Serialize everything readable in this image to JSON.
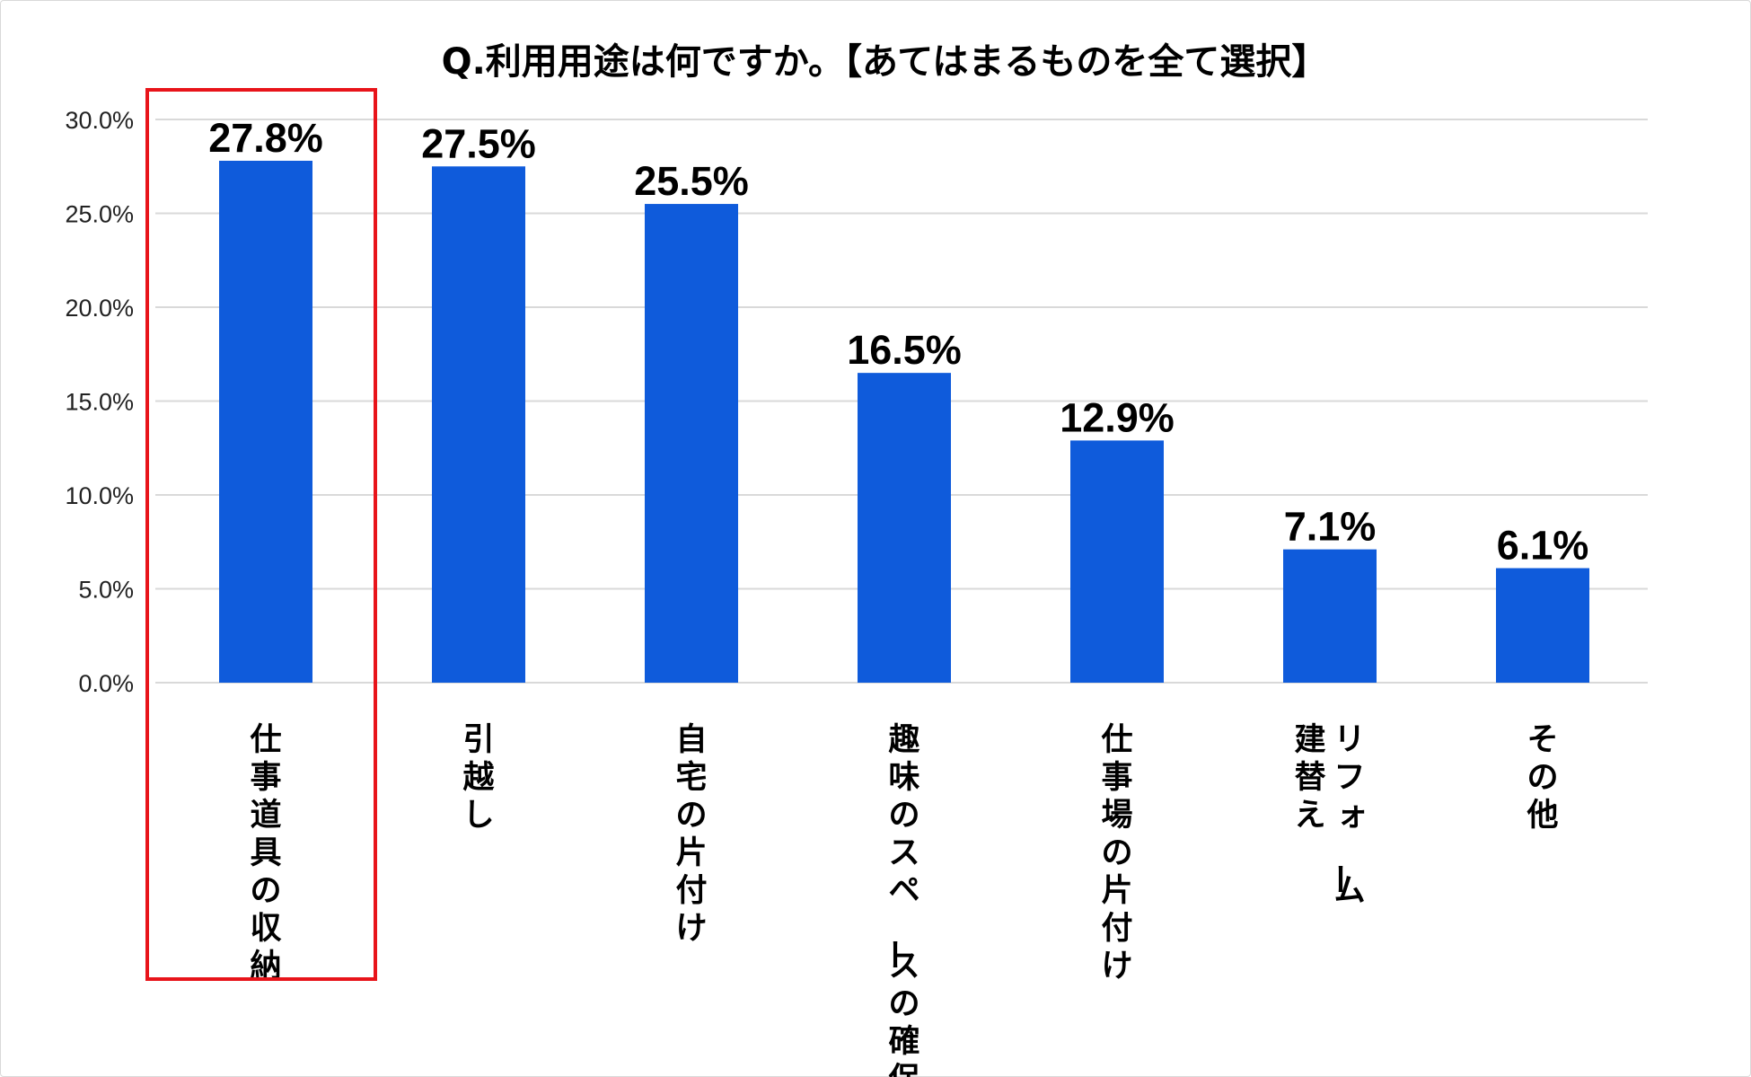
{
  "chart_data": {
    "type": "bar",
    "title": "Q.利用用途は何ですか。【あてはまるものを全て選択】",
    "categories": [
      [
        "仕事道具の収納"
      ],
      [
        "引越し"
      ],
      [
        "自宅の片付け"
      ],
      [
        "趣味のスペースの確保"
      ],
      [
        "仕事場の片付け"
      ],
      [
        "リフォーム",
        "建替え"
      ],
      [
        "その他"
      ]
    ],
    "values": [
      27.8,
      27.5,
      25.5,
      16.5,
      12.9,
      7.1,
      6.1
    ],
    "data_labels": [
      "27.8%",
      "27.5%",
      "25.5%",
      "16.5%",
      "12.9%",
      "7.1%",
      "6.1%"
    ],
    "ytick_labels": [
      "0.0%",
      "5.0%",
      "10.0%",
      "15.0%",
      "20.0%",
      "25.0%",
      "30.0%"
    ],
    "yticks": [
      0,
      5,
      10,
      15,
      20,
      25,
      30
    ],
    "ylim": [
      0,
      30
    ],
    "xlabel": "",
    "ylabel": "",
    "grid": true,
    "legend": "none",
    "highlighted_category_index": 0,
    "colors": {
      "bar": "#0f5bdb",
      "highlight_box": "#e8141a",
      "gridline": "#d9d9d9",
      "text": "#000000"
    }
  }
}
